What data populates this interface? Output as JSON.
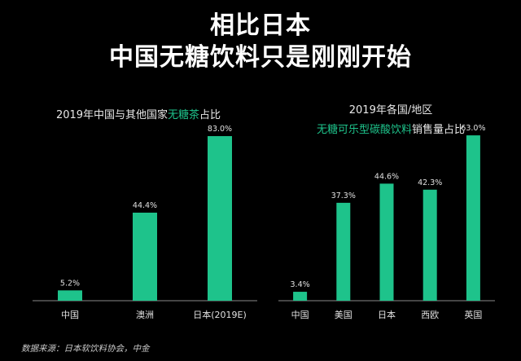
{
  "headline": {
    "line1": "相比日本",
    "line2": "中国无糖饮料只是刚刚开始"
  },
  "source": "数据来源：日本软饮料协会，中金",
  "colors": {
    "bar": "#1ec38b",
    "title_highlight": "#1ec38b",
    "background": "#000000"
  },
  "chart_data": [
    {
      "type": "bar",
      "title_prefix": "2019年中国与其他国家",
      "title_highlight": "无糖茶",
      "title_suffix": "占比",
      "categories": [
        "中国",
        "澳洲",
        "日本(2019E)"
      ],
      "values": [
        5.2,
        44.4,
        83.0
      ],
      "value_labels": [
        "5.2%",
        "44.4%",
        "83.0%"
      ],
      "ylim": [
        0,
        90
      ]
    },
    {
      "type": "bar",
      "title_line1": "2019年各国/地区",
      "title_highlight": "无糖可乐型碳酸饮料",
      "title_suffix": "销售量占比",
      "categories": [
        "中国",
        "美国",
        "日本",
        "西欧",
        "英国"
      ],
      "values": [
        3.4,
        37.3,
        44.6,
        42.3,
        63.0
      ],
      "value_labels": [
        "3.4%",
        "37.3%",
        "44.6%",
        "42.3%",
        "63.0%"
      ],
      "ylim": [
        0,
        68
      ]
    }
  ]
}
